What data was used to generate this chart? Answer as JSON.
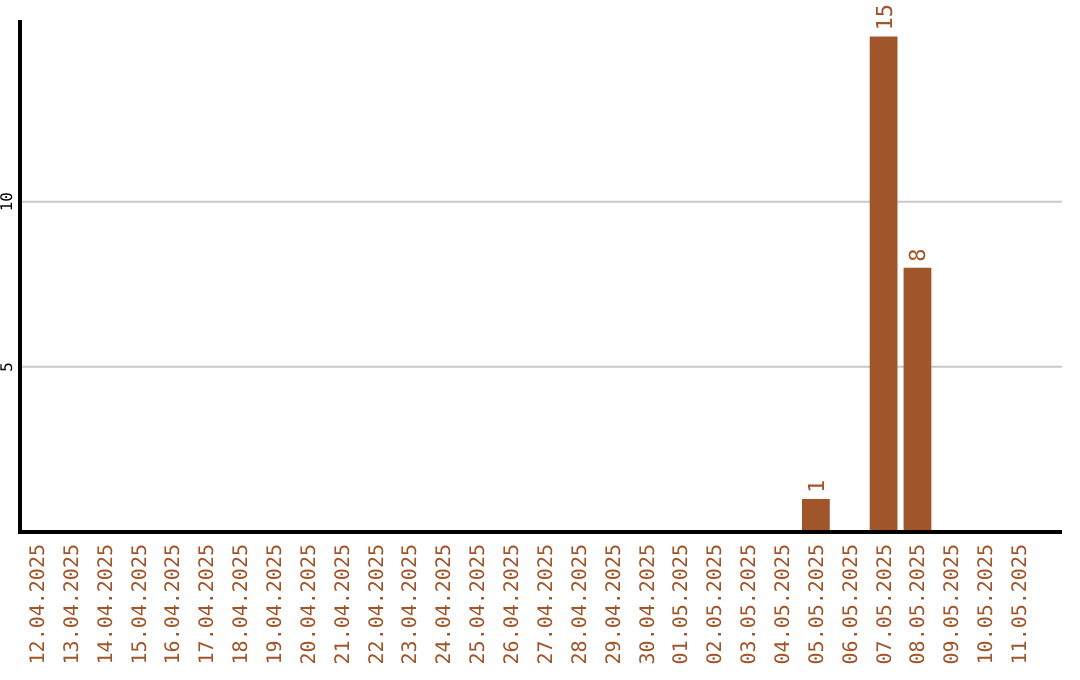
{
  "chart_data": {
    "type": "bar",
    "categories": [
      "12.04.2025",
      "13.04.2025",
      "14.04.2025",
      "15.04.2025",
      "16.04.2025",
      "17.04.2025",
      "18.04.2025",
      "19.04.2025",
      "20.04.2025",
      "21.04.2025",
      "22.04.2025",
      "23.04.2025",
      "24.04.2025",
      "25.04.2025",
      "26.04.2025",
      "27.04.2025",
      "28.04.2025",
      "29.04.2025",
      "30.04.2025",
      "01.05.2025",
      "02.05.2025",
      "03.05.2025",
      "04.05.2025",
      "05.05.2025",
      "06.05.2025",
      "07.05.2025",
      "08.05.2025",
      "09.05.2025",
      "10.05.2025",
      "11.05.2025"
    ],
    "values": [
      0,
      0,
      0,
      0,
      0,
      0,
      0,
      0,
      0,
      0,
      0,
      0,
      0,
      0,
      0,
      0,
      0,
      0,
      0,
      0,
      0,
      0,
      0,
      1,
      0,
      15,
      8,
      0,
      0,
      0
    ],
    "value_labels": [
      null,
      null,
      null,
      null,
      null,
      null,
      null,
      null,
      null,
      null,
      null,
      null,
      null,
      null,
      null,
      null,
      null,
      null,
      null,
      null,
      null,
      null,
      null,
      "1",
      null,
      "15",
      "8",
      null,
      null,
      null
    ],
    "color": "#a0562a",
    "ylim": [
      0,
      15.5
    ],
    "yticks": [
      5,
      10
    ],
    "grid": "y"
  }
}
